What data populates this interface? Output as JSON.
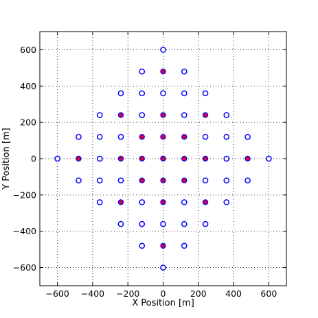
{
  "chart_data": {
    "type": "scatter",
    "xlabel": "X Position [m]",
    "ylabel": "Y Position [m]",
    "xlim": [
      -700,
      700
    ],
    "ylim": [
      -700,
      700
    ],
    "grid": true,
    "x_ticks": [
      -600,
      -400,
      -200,
      0,
      200,
      400,
      600
    ],
    "y_ticks": [
      -600,
      -400,
      -200,
      0,
      200,
      400,
      600
    ],
    "x_tick_labels": [
      "−600",
      "−400",
      "−200",
      "0",
      "200",
      "400",
      "600"
    ],
    "y_tick_labels": [
      "−600",
      "−400",
      "−200",
      "0",
      "200",
      "400",
      "600"
    ],
    "series": [
      {
        "marker": "open-circle",
        "color": "#0000ff",
        "points": [
          [
            0,
            600
          ],
          [
            -120,
            480
          ],
          [
            120,
            480
          ],
          [
            -240,
            360
          ],
          [
            -120,
            360
          ],
          [
            0,
            360
          ],
          [
            120,
            360
          ],
          [
            240,
            360
          ],
          [
            -360,
            240
          ],
          [
            -120,
            240
          ],
          [
            120,
            240
          ],
          [
            360,
            240
          ],
          [
            -480,
            120
          ],
          [
            -360,
            120
          ],
          [
            -240,
            120
          ],
          [
            240,
            120
          ],
          [
            360,
            120
          ],
          [
            480,
            120
          ],
          [
            -600,
            0
          ],
          [
            -360,
            0
          ],
          [
            360,
            0
          ],
          [
            600,
            0
          ],
          [
            -480,
            -120
          ],
          [
            -360,
            -120
          ],
          [
            -240,
            -120
          ],
          [
            240,
            -120
          ],
          [
            360,
            -120
          ],
          [
            480,
            -120
          ],
          [
            -360,
            -240
          ],
          [
            -120,
            -240
          ],
          [
            120,
            -240
          ],
          [
            360,
            -240
          ],
          [
            -240,
            -360
          ],
          [
            -120,
            -360
          ],
          [
            0,
            -360
          ],
          [
            120,
            -360
          ],
          [
            240,
            -360
          ],
          [
            -120,
            -480
          ],
          [
            120,
            -480
          ],
          [
            0,
            -600
          ]
        ]
      },
      {
        "marker": "filled-circle",
        "color": "#d4003c",
        "edge_color": "#0000ff",
        "points": [
          [
            0,
            480
          ],
          [
            -240,
            240
          ],
          [
            0,
            240
          ],
          [
            240,
            240
          ],
          [
            -120,
            120
          ],
          [
            0,
            120
          ],
          [
            120,
            120
          ],
          [
            -480,
            0
          ],
          [
            -240,
            0
          ],
          [
            -120,
            0
          ],
          [
            0,
            0
          ],
          [
            120,
            0
          ],
          [
            240,
            0
          ],
          [
            480,
            0
          ],
          [
            -120,
            -120
          ],
          [
            0,
            -120
          ],
          [
            120,
            -120
          ],
          [
            -240,
            -240
          ],
          [
            0,
            -240
          ],
          [
            240,
            -240
          ],
          [
            0,
            -480
          ]
        ]
      }
    ]
  }
}
